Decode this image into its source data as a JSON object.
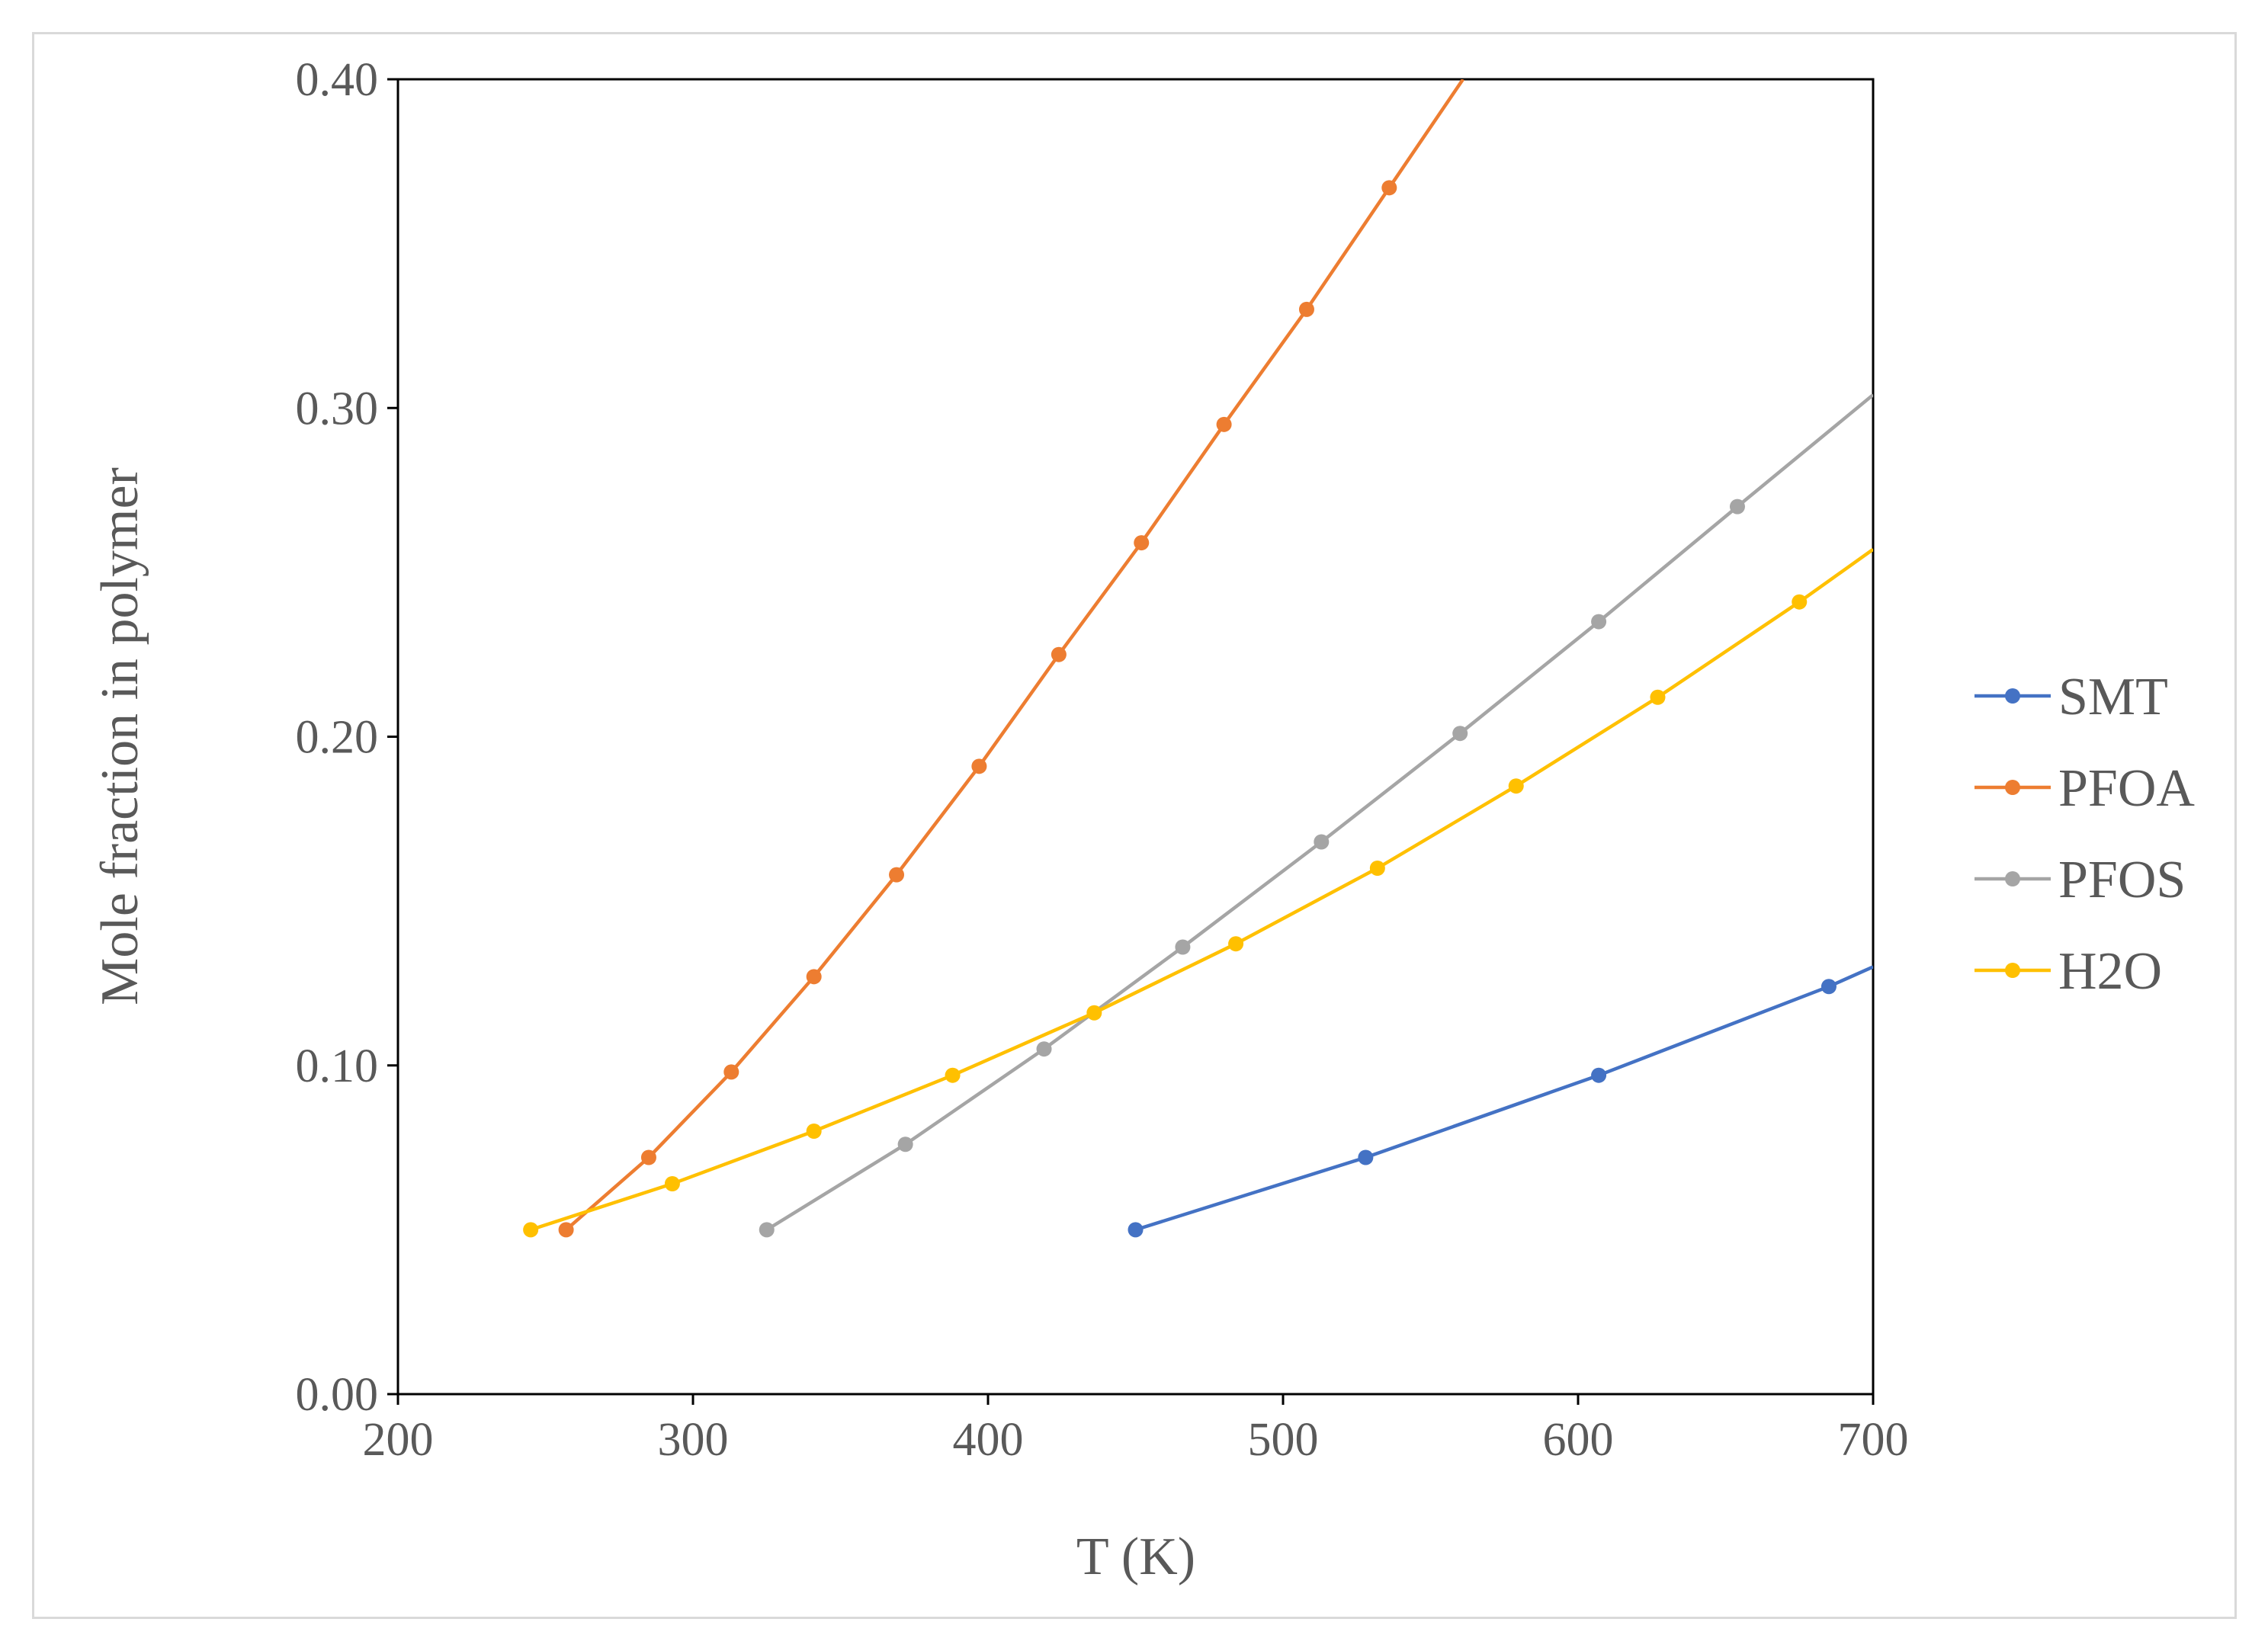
{
  "chart_data": {
    "type": "line",
    "title": "",
    "xlabel": "T (K)",
    "ylabel": "Mole fraction in polymer",
    "xlim": [
      200,
      700
    ],
    "ylim": [
      0,
      0.4
    ],
    "x_ticks": [
      "200",
      "300",
      "400",
      "500",
      "600",
      "700"
    ],
    "y_ticks": [
      "0.00",
      "0.10",
      "0.20",
      "0.30",
      "0.40"
    ],
    "grid": false,
    "legend_position": "right",
    "series": [
      {
        "name": "SMT",
        "color": "#4472C4",
        "points": [
          [
            450,
            0.05
          ],
          [
            528,
            0.072
          ],
          [
            607,
            0.097
          ],
          [
            685,
            0.124
          ],
          [
            700,
            0.13
          ]
        ]
      },
      {
        "name": "PFOA",
        "color": "#ED7D31",
        "points": [
          [
            257,
            0.05
          ],
          [
            285,
            0.072
          ],
          [
            313,
            0.098
          ],
          [
            341,
            0.127
          ],
          [
            369,
            0.158
          ],
          [
            397,
            0.191
          ],
          [
            424,
            0.225
          ],
          [
            452,
            0.259
          ],
          [
            480,
            0.295
          ],
          [
            508,
            0.33
          ],
          [
            536,
            0.367
          ],
          [
            561,
            0.4
          ]
        ]
      },
      {
        "name": "PFOS",
        "color": "#A5A5A5",
        "points": [
          [
            325,
            0.05
          ],
          [
            372,
            0.076
          ],
          [
            419,
            0.105
          ],
          [
            466,
            0.136
          ],
          [
            513,
            0.168
          ],
          [
            560,
            0.201
          ],
          [
            607,
            0.235
          ],
          [
            654,
            0.27
          ],
          [
            700,
            0.304
          ]
        ]
      },
      {
        "name": "H2O",
        "color": "#FFC000",
        "points": [
          [
            245,
            0.05
          ],
          [
            293,
            0.064
          ],
          [
            341,
            0.08
          ],
          [
            388,
            0.097
          ],
          [
            436,
            0.116
          ],
          [
            484,
            0.137
          ],
          [
            532,
            0.16
          ],
          [
            579,
            0.185
          ],
          [
            627,
            0.212
          ],
          [
            675,
            0.241
          ],
          [
            700,
            0.257
          ]
        ]
      }
    ]
  }
}
